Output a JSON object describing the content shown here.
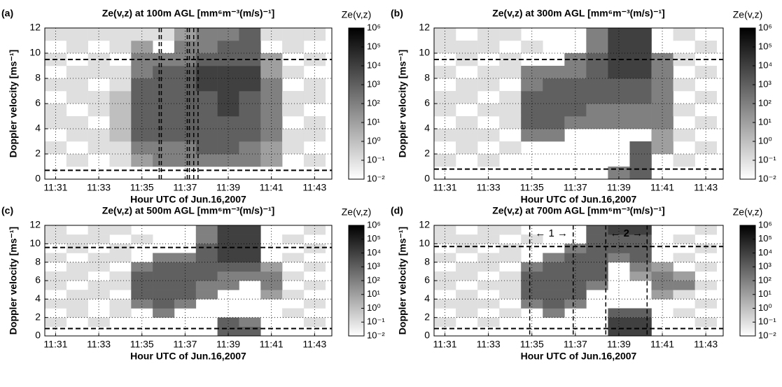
{
  "chart_data": [
    {
      "type": "heatmap",
      "panel_label": "(a)",
      "title": "Ze(v,z) at 100m AGL [mm⁶m⁻³(m/s)⁻¹]",
      "x_label": "Hour UTC of Jun.16,2007",
      "y_label": "Doppler velocity [ms⁻¹]",
      "colorbar_label": "Ze(v,z)",
      "x": [
        31,
        32,
        33,
        34,
        35,
        36,
        37,
        38,
        39,
        40,
        41,
        42,
        43
      ],
      "y": [
        0.5,
        1.5,
        2.5,
        3.5,
        4.5,
        5.5,
        6.5,
        7.5,
        8.5,
        9.5,
        10.5,
        11.5
      ],
      "z": [
        [
          null,
          null,
          null,
          null,
          null,
          null,
          null,
          null,
          null,
          null,
          null,
          null,
          null
        ],
        [
          null,
          0.1,
          null,
          0.1,
          10,
          100,
          100,
          100,
          100,
          100,
          10,
          null,
          0.1
        ],
        [
          0.1,
          null,
          0.1,
          0.1,
          100,
          100,
          100,
          1000,
          1000,
          100,
          10,
          0.1,
          null
        ],
        [
          null,
          0.1,
          0.1,
          1,
          1000,
          1000,
          1000,
          1000,
          1000,
          1000,
          100,
          0.1,
          0.1
        ],
        [
          0.1,
          0.1,
          null,
          1,
          1000,
          1000,
          1000,
          1000,
          1000,
          1000,
          100,
          null,
          0.1
        ],
        [
          0.1,
          null,
          0.1,
          1,
          1000,
          1000,
          1000,
          1000,
          10000,
          1000,
          100,
          0.1,
          null
        ],
        [
          null,
          0.1,
          0.1,
          1,
          1000,
          1000,
          1000,
          1000,
          10000,
          1000,
          100,
          0.1,
          0.1
        ],
        [
          0.1,
          0.1,
          null,
          0.1,
          1000,
          1000,
          1000,
          10000,
          10000,
          10000,
          100,
          null,
          0.1
        ],
        [
          null,
          0.1,
          0.1,
          0.1,
          100,
          1000,
          1000,
          10000,
          10000,
          10000,
          10,
          0.1,
          null
        ],
        [
          0.1,
          null,
          0.1,
          null,
          100,
          100,
          100,
          1000,
          1000,
          1000,
          10,
          null,
          0.1
        ],
        [
          null,
          0.1,
          null,
          0.1,
          10,
          null,
          100,
          100,
          1000,
          1000,
          null,
          0.1,
          null
        ],
        [
          0.1,
          0.1,
          0.1,
          0.1,
          0.1,
          0.1,
          10,
          100,
          100,
          1000,
          0.1,
          0.1,
          0.1
        ]
      ],
      "xlim": [
        30.5,
        43.8
      ],
      "ylim": [
        0,
        12
      ],
      "xticks": [
        {
          "value": 31,
          "label": "11:31"
        },
        {
          "value": 33,
          "label": "11:33"
        },
        {
          "value": 35,
          "label": "11:35"
        },
        {
          "value": 37,
          "label": "11:37"
        },
        {
          "value": 39,
          "label": "11:39"
        },
        {
          "value": 41,
          "label": "11:41"
        },
        {
          "value": 43,
          "label": "11:43"
        }
      ],
      "yticks": [
        0,
        2,
        4,
        6,
        8,
        10,
        12
      ],
      "grid": true,
      "clim": [
        0.01,
        1000000
      ],
      "cmap": [
        "#ffffff",
        "#000000"
      ],
      "cticks": [
        {
          "value": 0.01,
          "label": "10⁻²"
        },
        {
          "value": 0.1,
          "label": "10⁻¹"
        },
        {
          "value": 1,
          "label": "10⁰"
        },
        {
          "value": 10,
          "label": "10¹"
        },
        {
          "value": 100,
          "label": "10²"
        },
        {
          "value": 1000,
          "label": "10³"
        },
        {
          "value": 10000,
          "label": "10⁴"
        },
        {
          "value": 100000,
          "label": "10⁵"
        },
        {
          "value": 1000000,
          "label": "10⁶"
        }
      ],
      "hlines": [
        9.5,
        0.7
      ],
      "vlines": [
        35.8,
        35.9,
        37.1,
        37.2,
        37.4,
        37.6
      ]
    },
    {
      "type": "heatmap",
      "panel_label": "(b)",
      "title": "Ze(v,z) at 300m AGL [mm⁶m⁻³(m/s)⁻¹]",
      "x_label": "Hour UTC of Jun.16,2007",
      "y_label": "Doppler velocity [ms⁻¹]",
      "colorbar_label": "Ze(v,z)",
      "x": [
        31,
        32,
        33,
        34,
        35,
        36,
        37,
        38,
        39,
        40,
        41,
        42,
        43
      ],
      "y": [
        0.5,
        1.5,
        2.5,
        3.5,
        4.5,
        5.5,
        6.5,
        7.5,
        8.5,
        9.5,
        10.5,
        11.5
      ],
      "z": [
        [
          null,
          null,
          null,
          null,
          null,
          null,
          null,
          null,
          100,
          1000,
          null,
          null,
          null
        ],
        [
          0.1,
          null,
          0.1,
          null,
          null,
          null,
          null,
          null,
          null,
          1000,
          null,
          0.1,
          null
        ],
        [
          null,
          0.1,
          null,
          0.1,
          null,
          null,
          null,
          null,
          null,
          1000,
          10,
          null,
          0.1
        ],
        [
          0.1,
          0.1,
          0.1,
          null,
          100,
          100,
          null,
          null,
          null,
          null,
          10,
          0.1,
          null
        ],
        [
          null,
          0.1,
          null,
          0.1,
          1000,
          1000,
          100,
          100,
          100,
          100,
          100,
          null,
          0.1
        ],
        [
          0.1,
          null,
          0.1,
          0.1,
          1000,
          1000,
          1000,
          100,
          100,
          100,
          100,
          0.1,
          null
        ],
        [
          0.1,
          0.1,
          null,
          0.1,
          1000,
          1000,
          1000,
          1000,
          1000,
          1000,
          100,
          null,
          0.1
        ],
        [
          null,
          0.1,
          0.1,
          null,
          100,
          1000,
          1000,
          1000,
          1000,
          1000,
          100,
          0.1,
          null
        ],
        [
          0.1,
          null,
          0.1,
          0.1,
          100,
          100,
          100,
          1000,
          10000,
          10000,
          100,
          null,
          0.1
        ],
        [
          null,
          0.1,
          null,
          0.1,
          null,
          null,
          100,
          1000,
          10000,
          10000,
          100,
          0.1,
          null
        ],
        [
          0.1,
          0.1,
          0.1,
          null,
          0.1,
          null,
          null,
          100,
          10000,
          10000,
          null,
          null,
          0.1
        ],
        [
          0.1,
          null,
          0.1,
          0.1,
          null,
          null,
          null,
          100,
          10000,
          10000,
          null,
          0.1,
          null
        ]
      ],
      "xlim": [
        30.5,
        43.8
      ],
      "ylim": [
        0,
        12
      ],
      "xticks": [
        {
          "value": 31,
          "label": "11:31"
        },
        {
          "value": 33,
          "label": "11:33"
        },
        {
          "value": 35,
          "label": "11:35"
        },
        {
          "value": 37,
          "label": "11:37"
        },
        {
          "value": 39,
          "label": "11:39"
        },
        {
          "value": 41,
          "label": "11:41"
        },
        {
          "value": 43,
          "label": "11:43"
        }
      ],
      "yticks": [
        0,
        2,
        4,
        6,
        8,
        10,
        12
      ],
      "grid": true,
      "clim": [
        0.01,
        1000000
      ],
      "cmap": [
        "#ffffff",
        "#000000"
      ],
      "cticks": [
        {
          "value": 0.01,
          "label": "10⁻²"
        },
        {
          "value": 0.1,
          "label": "10⁻¹"
        },
        {
          "value": 1,
          "label": "10⁰"
        },
        {
          "value": 10,
          "label": "10¹"
        },
        {
          "value": 100,
          "label": "10²"
        },
        {
          "value": 1000,
          "label": "10³"
        },
        {
          "value": 10000,
          "label": "10⁴"
        },
        {
          "value": 100000,
          "label": "10⁵"
        },
        {
          "value": 1000000,
          "label": "10⁶"
        }
      ],
      "hlines": [
        9.5,
        0.8
      ]
    },
    {
      "type": "heatmap",
      "panel_label": "(c)",
      "title": "Ze(v,z) at 500m AGL [mm⁶m⁻³(m/s)⁻¹]",
      "x_label": "Hour UTC of Jun.16,2007",
      "y_label": "Doppler velocity [ms⁻¹]",
      "colorbar_label": "Ze(v,z)",
      "x": [
        31,
        32,
        33,
        34,
        35,
        36,
        37,
        38,
        39,
        40,
        41,
        42,
        43
      ],
      "y": [
        0.5,
        1.5,
        2.5,
        3.5,
        4.5,
        5.5,
        6.5,
        7.5,
        8.5,
        9.5,
        10.5,
        11.5
      ],
      "z": [
        [
          null,
          null,
          null,
          null,
          null,
          null,
          null,
          null,
          1000,
          1000,
          null,
          null,
          null
        ],
        [
          0.1,
          null,
          0.1,
          null,
          null,
          null,
          null,
          null,
          1000,
          100,
          null,
          null,
          0.1
        ],
        [
          null,
          0.1,
          null,
          0.1,
          null,
          100,
          null,
          null,
          null,
          null,
          null,
          0.1,
          null
        ],
        [
          0.1,
          0.1,
          null,
          0.1,
          100,
          1000,
          100,
          null,
          null,
          null,
          null,
          null,
          0.1
        ],
        [
          null,
          0.1,
          0.1,
          null,
          1000,
          1000,
          1000,
          100,
          null,
          null,
          10,
          0.1,
          null
        ],
        [
          0.1,
          null,
          0.1,
          0.1,
          1000,
          1000,
          1000,
          100,
          100,
          null,
          100,
          null,
          0.1
        ],
        [
          0.1,
          0.1,
          null,
          0.1,
          1000,
          1000,
          1000,
          1000,
          100,
          100,
          100,
          0.1,
          null
        ],
        [
          null,
          0.1,
          0.1,
          null,
          100,
          1000,
          1000,
          1000,
          1000,
          1000,
          10,
          null,
          0.1
        ],
        [
          0.1,
          null,
          0.1,
          0.1,
          null,
          100,
          100,
          1000,
          10000,
          10000,
          null,
          0.1,
          null
        ],
        [
          null,
          0.1,
          null,
          0.1,
          null,
          null,
          null,
          1000,
          10000,
          10000,
          null,
          null,
          0.1
        ],
        [
          0.1,
          0.1,
          0.1,
          null,
          0.1,
          null,
          null,
          100,
          10000,
          10000,
          null,
          0.1,
          null
        ],
        [
          0.1,
          null,
          0.1,
          0.1,
          null,
          null,
          null,
          100,
          10000,
          10000,
          null,
          null,
          0.1
        ]
      ],
      "xlim": [
        30.5,
        43.8
      ],
      "ylim": [
        0,
        12
      ],
      "xticks": [
        {
          "value": 31,
          "label": "11:31"
        },
        {
          "value": 33,
          "label": "11:33"
        },
        {
          "value": 35,
          "label": "11:35"
        },
        {
          "value": 37,
          "label": "11:37"
        },
        {
          "value": 39,
          "label": "11:39"
        },
        {
          "value": 41,
          "label": "11:41"
        },
        {
          "value": 43,
          "label": "11:43"
        }
      ],
      "yticks": [
        0,
        2,
        4,
        6,
        8,
        10,
        12
      ],
      "grid": true,
      "clim": [
        0.01,
        1000000
      ],
      "cmap": [
        "#ffffff",
        "#000000"
      ],
      "cticks": [
        {
          "value": 0.01,
          "label": "10⁻²"
        },
        {
          "value": 0.1,
          "label": "10⁻¹"
        },
        {
          "value": 1,
          "label": "10⁰"
        },
        {
          "value": 10,
          "label": "10¹"
        },
        {
          "value": 100,
          "label": "10²"
        },
        {
          "value": 1000,
          "label": "10³"
        },
        {
          "value": 10000,
          "label": "10⁴"
        },
        {
          "value": 100000,
          "label": "10⁵"
        },
        {
          "value": 1000000,
          "label": "10⁶"
        }
      ],
      "hlines": [
        9.6,
        0.8
      ]
    },
    {
      "type": "heatmap",
      "panel_label": "(d)",
      "title": "Ze(v,z) at 700m AGL [mm⁶m⁻³(m/s)⁻¹]",
      "x_label": "Hour UTC of Jun.16,2007",
      "y_label": "Doppler velocity [ms⁻¹]",
      "colorbar_label": "Ze(v,z)",
      "x": [
        31,
        32,
        33,
        34,
        35,
        36,
        37,
        38,
        39,
        40,
        41,
        42,
        43
      ],
      "y": [
        0.5,
        1.5,
        2.5,
        3.5,
        4.5,
        5.5,
        6.5,
        7.5,
        8.5,
        9.5,
        10.5,
        11.5
      ],
      "z": [
        [
          null,
          null,
          null,
          null,
          null,
          null,
          null,
          null,
          10000,
          10000,
          null,
          null,
          null
        ],
        [
          0.1,
          null,
          0.1,
          null,
          null,
          null,
          null,
          null,
          10000,
          10000,
          null,
          null,
          0.1
        ],
        [
          null,
          0.1,
          null,
          0.1,
          null,
          100,
          null,
          null,
          1000,
          1000,
          null,
          0.1,
          null
        ],
        [
          0.1,
          0.1,
          0.1,
          null,
          100,
          1000,
          100,
          null,
          null,
          null,
          null,
          null,
          0.1
        ],
        [
          null,
          0.1,
          null,
          0.1,
          1000,
          1000,
          1000,
          null,
          null,
          null,
          10,
          0.1,
          null
        ],
        [
          0.1,
          null,
          0.1,
          0.1,
          1000,
          1000,
          1000,
          100,
          null,
          null,
          100,
          100,
          0.1
        ],
        [
          0.1,
          0.1,
          null,
          0.1,
          1000,
          1000,
          1000,
          1000,
          null,
          10,
          100,
          10,
          null
        ],
        [
          null,
          0.1,
          0.1,
          null,
          100,
          1000,
          1000,
          1000,
          null,
          100,
          10,
          null,
          0.1
        ],
        [
          0.1,
          null,
          0.1,
          0.1,
          null,
          100,
          1000,
          1000,
          100,
          1000,
          null,
          0.1,
          null
        ],
        [
          null,
          0.1,
          null,
          0.1,
          null,
          null,
          100,
          1000,
          1000,
          1000,
          null,
          null,
          0.1
        ],
        [
          0.1,
          0.1,
          0.1,
          null,
          0.1,
          null,
          null,
          1000,
          1000,
          1000,
          null,
          0.1,
          null
        ],
        [
          0.1,
          null,
          0.1,
          0.1,
          null,
          null,
          null,
          1000,
          10000,
          10000,
          null,
          null,
          0.1
        ]
      ],
      "xlim": [
        30.5,
        43.8
      ],
      "ylim": [
        0,
        12
      ],
      "xticks": [
        {
          "value": 31,
          "label": "11:31"
        },
        {
          "value": 33,
          "label": "11:33"
        },
        {
          "value": 35,
          "label": "11:35"
        },
        {
          "value": 37,
          "label": "11:37"
        },
        {
          "value": 39,
          "label": "11:39"
        },
        {
          "value": 41,
          "label": "11:41"
        },
        {
          "value": 43,
          "label": "11:43"
        }
      ],
      "yticks": [
        0,
        2,
        4,
        6,
        8,
        10,
        12
      ],
      "grid": true,
      "clim": [
        0.01,
        1000000
      ],
      "cmap": [
        "#ffffff",
        "#000000"
      ],
      "cticks": [
        {
          "value": 0.01,
          "label": "10⁻²"
        },
        {
          "value": 0.1,
          "label": "10⁻¹"
        },
        {
          "value": 1,
          "label": "10⁰"
        },
        {
          "value": 10,
          "label": "10¹"
        },
        {
          "value": 100,
          "label": "10²"
        },
        {
          "value": 1000,
          "label": "10³"
        },
        {
          "value": 10000,
          "label": "10⁴"
        },
        {
          "value": 100000,
          "label": "10⁵"
        },
        {
          "value": 1000000,
          "label": "10⁶"
        }
      ],
      "hlines": [
        9.7,
        0.8
      ],
      "vlines": [
        34.9,
        36.9,
        38.4,
        40.3
      ],
      "annotations": [
        "← 1 →",
        "← 2 →"
      ]
    }
  ]
}
